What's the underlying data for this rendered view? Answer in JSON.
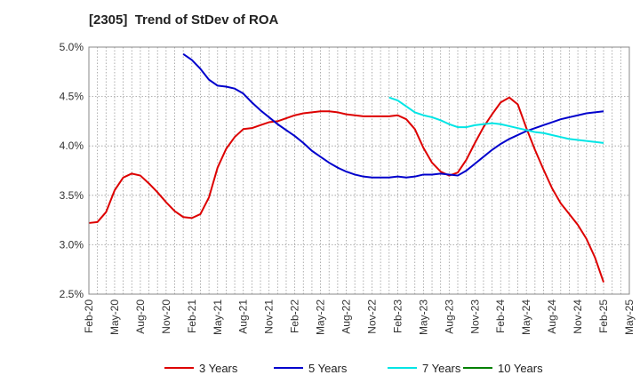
{
  "chart_data": {
    "type": "line",
    "title": "[2305]  Trend of StDev of ROA",
    "ylim": [
      2.5,
      5.0
    ],
    "yticks": [
      2.5,
      3.0,
      3.5,
      4.0,
      4.5,
      5.0
    ],
    "ytick_labels": [
      "2.5%",
      "3.0%",
      "3.5%",
      "4.0%",
      "4.5%",
      "5.0%"
    ],
    "xticks": [
      "Feb-20",
      "May-20",
      "Aug-20",
      "Nov-20",
      "Feb-21",
      "May-21",
      "Aug-21",
      "Nov-21",
      "Feb-22",
      "May-22",
      "Aug-22",
      "Nov-22",
      "Feb-23",
      "May-23",
      "Aug-23",
      "Nov-23",
      "Feb-24",
      "May-24",
      "Aug-24",
      "Nov-24",
      "Feb-25",
      "May-25"
    ],
    "grid": true,
    "legend_position": "bottom",
    "series": [
      {
        "name": "3 Years",
        "color": "#dd0000",
        "points": [
          [
            "Feb-20",
            3.22
          ],
          [
            "Mar-20",
            3.23
          ],
          [
            "Apr-20",
            3.33
          ],
          [
            "May-20",
            3.55
          ],
          [
            "Jun-20",
            3.68
          ],
          [
            "Jul-20",
            3.72
          ],
          [
            "Aug-20",
            3.7
          ],
          [
            "Sep-20",
            3.62
          ],
          [
            "Oct-20",
            3.53
          ],
          [
            "Nov-20",
            3.43
          ],
          [
            "Dec-20",
            3.34
          ],
          [
            "Jan-21",
            3.28
          ],
          [
            "Feb-21",
            3.27
          ],
          [
            "Mar-21",
            3.31
          ],
          [
            "Apr-21",
            3.48
          ],
          [
            "May-21",
            3.78
          ],
          [
            "Jun-21",
            3.97
          ],
          [
            "Jul-21",
            4.09
          ],
          [
            "Aug-21",
            4.17
          ],
          [
            "Sep-21",
            4.18
          ],
          [
            "Oct-21",
            4.21
          ],
          [
            "Nov-21",
            4.24
          ],
          [
            "Dec-21",
            4.25
          ],
          [
            "Jan-22",
            4.28
          ],
          [
            "Feb-22",
            4.31
          ],
          [
            "Mar-22",
            4.33
          ],
          [
            "Apr-22",
            4.34
          ],
          [
            "May-22",
            4.35
          ],
          [
            "Jun-22",
            4.35
          ],
          [
            "Jul-22",
            4.34
          ],
          [
            "Aug-22",
            4.32
          ],
          [
            "Sep-22",
            4.31
          ],
          [
            "Oct-22",
            4.3
          ],
          [
            "Nov-22",
            4.3
          ],
          [
            "Dec-22",
            4.3
          ],
          [
            "Jan-23",
            4.3
          ],
          [
            "Feb-23",
            4.31
          ],
          [
            "Mar-23",
            4.27
          ],
          [
            "Apr-23",
            4.17
          ],
          [
            "May-23",
            3.98
          ],
          [
            "Jun-23",
            3.83
          ],
          [
            "Jul-23",
            3.74
          ],
          [
            "Aug-23",
            3.7
          ],
          [
            "Sep-23",
            3.73
          ],
          [
            "Oct-23",
            3.86
          ],
          [
            "Nov-23",
            4.03
          ],
          [
            "Dec-23",
            4.19
          ],
          [
            "Jan-24",
            4.32
          ],
          [
            "Feb-24",
            4.44
          ],
          [
            "Mar-24",
            4.49
          ],
          [
            "Apr-24",
            4.42
          ],
          [
            "May-24",
            4.18
          ],
          [
            "Jun-24",
            3.96
          ],
          [
            "Jul-24",
            3.76
          ],
          [
            "Aug-24",
            3.57
          ],
          [
            "Sep-24",
            3.42
          ],
          [
            "Oct-24",
            3.31
          ],
          [
            "Nov-24",
            3.2
          ],
          [
            "Dec-24",
            3.06
          ],
          [
            "Jan-25",
            2.87
          ],
          [
            "Feb-25",
            2.62
          ]
        ]
      },
      {
        "name": "5 Years",
        "color": "#0000cc",
        "points": [
          [
            "Jan-21",
            4.93
          ],
          [
            "Feb-21",
            4.87
          ],
          [
            "Mar-21",
            4.78
          ],
          [
            "Apr-21",
            4.67
          ],
          [
            "May-21",
            4.61
          ],
          [
            "Jun-21",
            4.6
          ],
          [
            "Jul-21",
            4.58
          ],
          [
            "Aug-21",
            4.53
          ],
          [
            "Sep-21",
            4.44
          ],
          [
            "Oct-21",
            4.36
          ],
          [
            "Nov-21",
            4.29
          ],
          [
            "Dec-21",
            4.22
          ],
          [
            "Jan-22",
            4.16
          ],
          [
            "Feb-22",
            4.1
          ],
          [
            "Mar-22",
            4.03
          ],
          [
            "Apr-22",
            3.95
          ],
          [
            "May-22",
            3.89
          ],
          [
            "Jun-22",
            3.83
          ],
          [
            "Jul-22",
            3.78
          ],
          [
            "Aug-22",
            3.74
          ],
          [
            "Sep-22",
            3.71
          ],
          [
            "Oct-22",
            3.69
          ],
          [
            "Nov-22",
            3.68
          ],
          [
            "Dec-22",
            3.68
          ],
          [
            "Jan-23",
            3.68
          ],
          [
            "Feb-23",
            3.69
          ],
          [
            "Mar-23",
            3.68
          ],
          [
            "Apr-23",
            3.69
          ],
          [
            "May-23",
            3.71
          ],
          [
            "Jun-23",
            3.71
          ],
          [
            "Jul-23",
            3.72
          ],
          [
            "Aug-23",
            3.71
          ],
          [
            "Sep-23",
            3.7
          ],
          [
            "Oct-23",
            3.75
          ],
          [
            "Nov-23",
            3.82
          ],
          [
            "Dec-23",
            3.89
          ],
          [
            "Jan-24",
            3.96
          ],
          [
            "Feb-24",
            4.02
          ],
          [
            "Mar-24",
            4.07
          ],
          [
            "Apr-24",
            4.11
          ],
          [
            "May-24",
            4.15
          ],
          [
            "Jun-24",
            4.18
          ],
          [
            "Jul-24",
            4.21
          ],
          [
            "Aug-24",
            4.24
          ],
          [
            "Sep-24",
            4.27
          ],
          [
            "Oct-24",
            4.29
          ],
          [
            "Nov-24",
            4.31
          ],
          [
            "Dec-24",
            4.33
          ],
          [
            "Jan-25",
            4.34
          ],
          [
            "Feb-25",
            4.35
          ]
        ]
      },
      {
        "name": "7 Years",
        "color": "#00e5e5",
        "points": [
          [
            "Jan-23",
            4.49
          ],
          [
            "Feb-23",
            4.46
          ],
          [
            "Mar-23",
            4.4
          ],
          [
            "Apr-23",
            4.34
          ],
          [
            "May-23",
            4.31
          ],
          [
            "Jun-23",
            4.29
          ],
          [
            "Jul-23",
            4.26
          ],
          [
            "Aug-23",
            4.22
          ],
          [
            "Sep-23",
            4.19
          ],
          [
            "Oct-23",
            4.19
          ],
          [
            "Nov-23",
            4.21
          ],
          [
            "Dec-23",
            4.22
          ],
          [
            "Jan-24",
            4.23
          ],
          [
            "Feb-24",
            4.22
          ],
          [
            "Mar-24",
            4.2
          ],
          [
            "Apr-24",
            4.18
          ],
          [
            "May-24",
            4.16
          ],
          [
            "Jun-24",
            4.14
          ],
          [
            "Jul-24",
            4.13
          ],
          [
            "Aug-24",
            4.11
          ],
          [
            "Sep-24",
            4.09
          ],
          [
            "Oct-24",
            4.07
          ],
          [
            "Nov-24",
            4.06
          ],
          [
            "Dec-24",
            4.05
          ],
          [
            "Jan-25",
            4.04
          ],
          [
            "Feb-25",
            4.03
          ]
        ]
      },
      {
        "name": "10 Years",
        "color": "#008000",
        "points": []
      }
    ]
  }
}
